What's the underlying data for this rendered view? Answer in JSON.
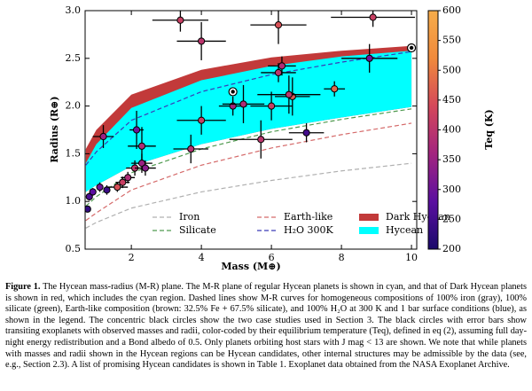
{
  "chart_data": {
    "type": "scatter",
    "xlabel": "Mass (M⊕)",
    "ylabel": "Radius (R⊕)",
    "xlim": [
      0.68,
      10.15
    ],
    "ylim": [
      0.5,
      3.0
    ],
    "xticks": [
      2,
      4,
      6,
      8,
      10
    ],
    "yticks": [
      0.5,
      {
        "value": 1,
        "label": "1.0"
      },
      1.5,
      {
        "value": 2,
        "label": "2.0"
      },
      2.5,
      {
        "value": 3,
        "label": "3.0"
      }
    ],
    "colorbar": {
      "label": "Teq (K)",
      "lim": [
        200,
        600
      ],
      "ticks": [
        200,
        250,
        300,
        350,
        400,
        450,
        500,
        550,
        600
      ],
      "colormap": [
        "#1a0a6b",
        "#5b0fa0",
        "#a3247f",
        "#d4485a",
        "#f08a3c",
        "#f7ad4a"
      ]
    },
    "curves": {
      "x": [
        0.7,
        1,
        2,
        4,
        6,
        8,
        10
      ],
      "lines": [
        {
          "name": "Iron",
          "color": "#b0b0b0",
          "values": [
            0.72,
            0.78,
            0.93,
            1.1,
            1.22,
            1.32,
            1.4
          ]
        },
        {
          "name": "Silicate",
          "color": "#4f9a4f",
          "values": [
            0.95,
            1.05,
            1.3,
            1.55,
            1.73,
            1.86,
            1.97
          ]
        },
        {
          "name": "Earth-like",
          "color": "#d56a6a",
          "values": [
            0.8,
            0.88,
            1.12,
            1.38,
            1.56,
            1.7,
            1.82
          ]
        },
        {
          "name": "H₂O 300K",
          "color": "#3a3ab8",
          "values": [
            1.38,
            1.52,
            1.85,
            2.15,
            2.33,
            2.46,
            2.57
          ]
        }
      ],
      "bands": [
        {
          "name": "Dark Hycean",
          "color": "#c23a3a",
          "lower": [
            1.1,
            1.17,
            1.37,
            1.6,
            1.76,
            1.88,
            1.99
          ],
          "upper": [
            1.55,
            1.75,
            2.12,
            2.38,
            2.51,
            2.58,
            2.63
          ]
        },
        {
          "name": "Hycean",
          "color": "#00ffff",
          "lower": [
            1.1,
            1.17,
            1.37,
            1.6,
            1.76,
            1.88,
            1.99
          ],
          "upper": [
            1.4,
            1.6,
            1.98,
            2.27,
            2.42,
            2.52,
            2.58
          ]
        }
      ]
    },
    "points": {
      "x": [
        0.75,
        0.8,
        0.9,
        1.1,
        1.2,
        1.3,
        1.6,
        1.75,
        1.9,
        2.1,
        2.15,
        2.3,
        2.3,
        2.4,
        3.4,
        4.0,
        4.0,
        3.7,
        4.9,
        5.2,
        5.7,
        6.2,
        6.2,
        6.3,
        6.0,
        6.6,
        6.5,
        7.0,
        7.8,
        8.9,
        8.8
      ],
      "y": [
        0.92,
        1.05,
        1.1,
        1.15,
        1.68,
        1.12,
        1.15,
        1.2,
        1.25,
        1.35,
        1.75,
        1.58,
        1.4,
        1.35,
        2.9,
        2.68,
        1.85,
        1.55,
        2.0,
        2.02,
        1.65,
        2.85,
        2.35,
        2.42,
        2.0,
        2.1,
        2.12,
        1.72,
        2.18,
        2.93,
        2.5
      ],
      "xerr": [
        0.05,
        0.05,
        0.08,
        0.1,
        0.3,
        0.1,
        0.3,
        0.2,
        0.2,
        0.25,
        0.2,
        0.4,
        0.3,
        0.3,
        0.8,
        0.7,
        0.7,
        0.5,
        0.4,
        0.6,
        0.9,
        0.8,
        0.5,
        0.4,
        0.6,
        0.5,
        0.9,
        0.5,
        0.3,
        1.2,
        0.8
      ],
      "yerr": [
        0.03,
        0.04,
        0.04,
        0.05,
        0.12,
        0.05,
        0.05,
        0.06,
        0.06,
        0.08,
        0.2,
        0.2,
        0.1,
        0.08,
        0.12,
        0.2,
        0.15,
        0.15,
        0.1,
        0.2,
        0.2,
        0.2,
        0.1,
        0.1,
        0.15,
        0.2,
        0.2,
        0.1,
        0.08,
        0.1,
        0.15
      ],
      "teq": [
        230,
        260,
        280,
        300,
        350,
        240,
        450,
        420,
        380,
        400,
        300,
        380,
        350,
        330,
        420,
        400,
        420,
        390,
        360,
        380,
        400,
        450,
        400,
        380,
        420,
        460,
        400,
        250,
        480,
        420,
        300
      ]
    },
    "case_studies": {
      "x": [
        4.9,
        10.0
      ],
      "y": [
        2.15,
        2.61
      ]
    }
  },
  "caption": {
    "label": "Figure 1.",
    "text": "The Hycean mass-radius (M-R) plane. The M-R plane of regular Hycean planets is shown in cyan, and that of Dark Hycean planets is shown in red, which includes the cyan region. Dashed lines show M-R curves for homogeneous compositions of 100% iron (gray), 100% silicate (green), Earth-like composition (brown: 32.5% Fe + 67.5% silicate), and 100% H₂O at 300 K and 1 bar surface conditions (blue), as shown in the legend. The concentric black circles show the two case studies used in Section 3. The black circles with error bars show transiting exoplanets with observed masses and radii, color-coded by their equilibrium temperature (Teq), defined in eq (2), assuming full day-night energy redistribution and a Bond albedo of 0.5. Only planets orbiting host stars with J mag < 13 are shown. We note that while planets with masses and radii shown in the Hycean regions can be Hycean candidates, other internal structures may be admissible by the data (see, e.g., Section 2.3). A list of promising Hycean candidates is shown in Table 1. Exoplanet data obtained from the NASA Exoplanet Archive."
  }
}
